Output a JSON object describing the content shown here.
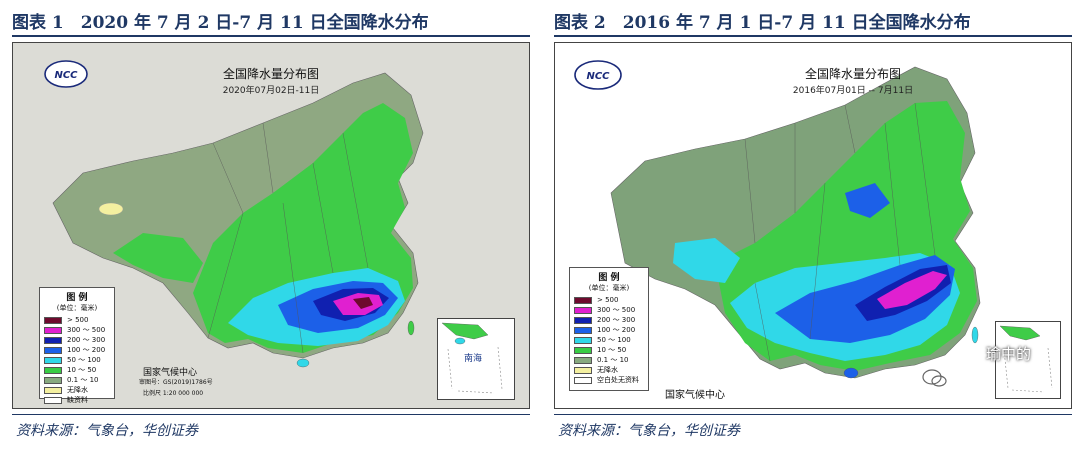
{
  "figures": [
    {
      "title": "图表 1　2020 年 7 月 2 日-7 月 11 日全国降水分布",
      "map_heading": "全国降水量分布图",
      "map_date": "2020年07月02日-11日",
      "legend_title": "图 例",
      "legend_unit": "(单位：毫米)",
      "legend": [
        {
          "label": "> 500",
          "color": "#6e0a2e"
        },
        {
          "label": "300 ～ 500",
          "color": "#e020d0"
        },
        {
          "label": "200 ～ 300",
          "color": "#1020b0"
        },
        {
          "label": "100 ～ 200",
          "color": "#1c60e8"
        },
        {
          "label": "50 ～ 100",
          "color": "#30d8e8"
        },
        {
          "label": "10 ～ 50",
          "color": "#38cc44"
        },
        {
          "label": "0.1 ～ 10",
          "color": "#88aa80"
        },
        {
          "label": "无降水",
          "color": "#f4f0a0"
        },
        {
          "label": "缺资料",
          "color": "#ffffff"
        }
      ],
      "org": "国家气候中心",
      "map_no": "审图号：GS(2019)1786号",
      "scale": "比例尺 1:20 000 000",
      "inset_label": "南海",
      "logo_text": "NCC",
      "source": "资料来源：气象台，华创证券"
    },
    {
      "title": "图表 2　2016 年 7 月 1 日-7 月 11 日全国降水分布",
      "map_heading": "全国降水量分布图",
      "map_date": "2016年07月01日 -- 7月11日",
      "legend_title": "图 例",
      "legend_unit": "(单位：毫米)",
      "legend": [
        {
          "label": "> 500",
          "color": "#6e0a2e"
        },
        {
          "label": "300 ～ 500",
          "color": "#e020d0"
        },
        {
          "label": "200 ～ 300",
          "color": "#1020b0"
        },
        {
          "label": "100 ～ 200",
          "color": "#1c60e8"
        },
        {
          "label": "50 ～ 100",
          "color": "#30d8e8"
        },
        {
          "label": "10 ～ 50",
          "color": "#38cc44"
        },
        {
          "label": "0.1 ～ 10",
          "color": "#88aa80"
        },
        {
          "label": "无降水",
          "color": "#f4f0a0"
        },
        {
          "label": "空白处无资料",
          "color": "#ffffff"
        }
      ],
      "org": "国家气候中心",
      "logo_text": "NCC",
      "watermark": "瑜中的",
      "source": "资料来源：气象台，华创证券"
    }
  ]
}
